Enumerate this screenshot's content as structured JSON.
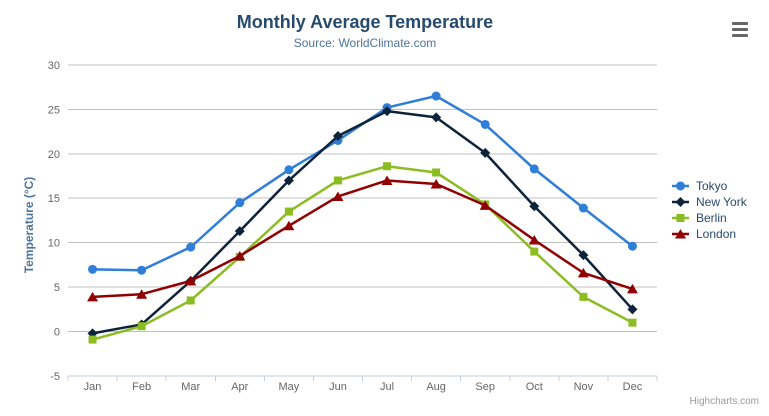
{
  "credits": "Highcharts.com",
  "export_menu_icon": "hamburger-menu",
  "axis_colors": {
    "grid_line": "#C0C0C0",
    "axis_line": "#C0D0E0",
    "tick_label": "#666666"
  },
  "chart_data": {
    "type": "line",
    "title": "Monthly Average Temperature",
    "subtitle": "Source: WorldClimate.com",
    "xlabel": "",
    "ylabel": "Temperature (°C)",
    "ylim": [
      -5,
      30
    ],
    "yticks": [
      -5,
      0,
      5,
      10,
      15,
      20,
      25,
      30
    ],
    "grid": true,
    "legend_position": "right",
    "categories": [
      "Jan",
      "Feb",
      "Mar",
      "Apr",
      "May",
      "Jun",
      "Jul",
      "Aug",
      "Sep",
      "Oct",
      "Nov",
      "Dec"
    ],
    "series": [
      {
        "name": "Tokyo",
        "color": "#2f7ed8",
        "marker": "circle",
        "values": [
          7.0,
          6.9,
          9.5,
          14.5,
          18.2,
          21.5,
          25.2,
          26.5,
          23.3,
          18.3,
          13.9,
          9.6
        ]
      },
      {
        "name": "New York",
        "color": "#0d233a",
        "marker": "diamond",
        "values": [
          -0.2,
          0.8,
          5.7,
          11.3,
          17.0,
          22.0,
          24.8,
          24.1,
          20.1,
          14.1,
          8.6,
          2.5
        ]
      },
      {
        "name": "Berlin",
        "color": "#8bbc21",
        "marker": "square",
        "values": [
          -0.9,
          0.6,
          3.5,
          8.4,
          13.5,
          17.0,
          18.6,
          17.9,
          14.3,
          9.0,
          3.9,
          1.0
        ]
      },
      {
        "name": "London",
        "color": "#910000",
        "marker": "triangle",
        "values": [
          3.9,
          4.2,
          5.7,
          8.5,
          11.9,
          15.2,
          17.0,
          16.6,
          14.2,
          10.3,
          6.6,
          4.8
        ]
      }
    ]
  }
}
